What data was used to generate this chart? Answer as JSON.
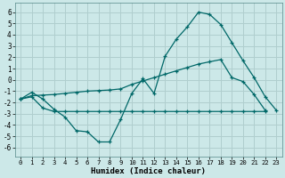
{
  "xlabel": "Humidex (Indice chaleur)",
  "background_color": "#cce8e8",
  "grid_color": "#b0cece",
  "line_color": "#006868",
  "x_ticks": [
    0,
    1,
    2,
    3,
    4,
    5,
    6,
    7,
    8,
    9,
    10,
    11,
    12,
    13,
    14,
    15,
    16,
    17,
    18,
    19,
    20,
    21,
    22,
    23
  ],
  "y_ticks": [
    -6,
    -5,
    -4,
    -3,
    -2,
    -1,
    0,
    1,
    2,
    3,
    4,
    5,
    6
  ],
  "ylim": [
    -6.8,
    6.8
  ],
  "xlim": [
    -0.5,
    23.5
  ],
  "line1_y": [
    -1.7,
    -1.1,
    -1.7,
    -2.6,
    -3.3,
    -4.5,
    -4.6,
    -5.5,
    -5.5,
    -3.5,
    -1.2,
    0.1,
    -1.2,
    2.1,
    3.6,
    4.7,
    6.0,
    5.8,
    4.9,
    3.3,
    1.7,
    0.2,
    -1.5,
    -2.7
  ],
  "line2_y": [
    -1.7,
    -1.4,
    -1.35,
    -1.3,
    -1.2,
    -1.1,
    -1.0,
    -0.95,
    -0.9,
    -0.8,
    -0.4,
    -0.1,
    0.2,
    0.5,
    0.8,
    1.1,
    1.4,
    1.6,
    1.8,
    0.2,
    -0.15,
    -1.3,
    -2.7,
    -2.7
  ],
  "line3_y": [
    -1.7,
    -1.5,
    -2.5,
    -2.8,
    -2.8,
    -2.8,
    -2.8,
    -2.8,
    -2.8,
    -2.8,
    -2.8,
    -2.8,
    -2.8,
    -2.8,
    -2.8,
    -2.8,
    -2.8,
    -2.8,
    -2.8,
    -2.8,
    -2.8,
    -2.8,
    -2.8,
    -2.7
  ]
}
